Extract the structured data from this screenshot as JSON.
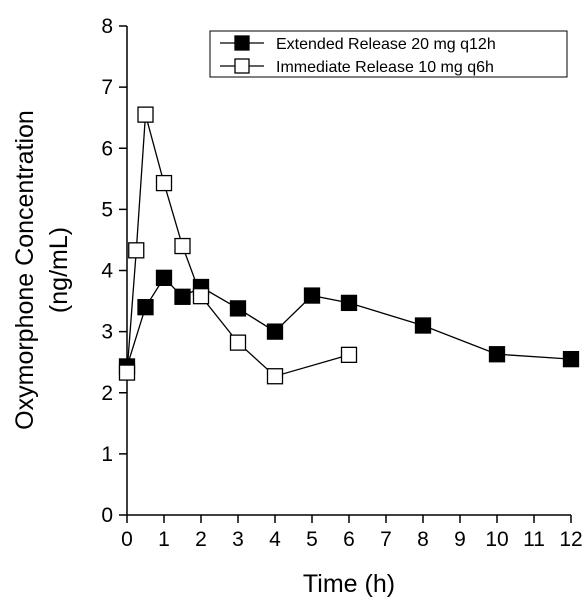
{
  "chart_data": {
    "type": "line",
    "xlabel": "Time (h)",
    "ylabel_line1": "Oxymorphone Concentration",
    "ylabel_line2": "(ng/mL)",
    "xlim": [
      0,
      12
    ],
    "ylim": [
      0,
      8
    ],
    "xticks": [
      0,
      1,
      2,
      3,
      4,
      5,
      6,
      7,
      8,
      9,
      10,
      11,
      12
    ],
    "yticks": [
      0,
      1,
      2,
      3,
      4,
      5,
      6,
      7,
      8
    ],
    "grid": false,
    "legend_position": "top-right",
    "series": [
      {
        "name": "Extended Release 20 mg q12h",
        "marker": "filled-square",
        "color": "#000000",
        "x": [
          0,
          0.5,
          1,
          1.5,
          2,
          3,
          4,
          5,
          6,
          8,
          10,
          12
        ],
        "y": [
          2.43,
          3.4,
          3.88,
          3.57,
          3.73,
          3.38,
          3.0,
          3.59,
          3.47,
          3.1,
          2.63,
          2.55
        ]
      },
      {
        "name": "Immediate Release 10 mg q6h",
        "marker": "open-square",
        "color": "#000000",
        "x": [
          0,
          0.25,
          0.5,
          1,
          1.5,
          2,
          3,
          4,
          6
        ],
        "y": [
          2.33,
          4.33,
          6.55,
          5.43,
          4.4,
          3.58,
          2.82,
          2.27,
          2.62
        ]
      }
    ]
  }
}
